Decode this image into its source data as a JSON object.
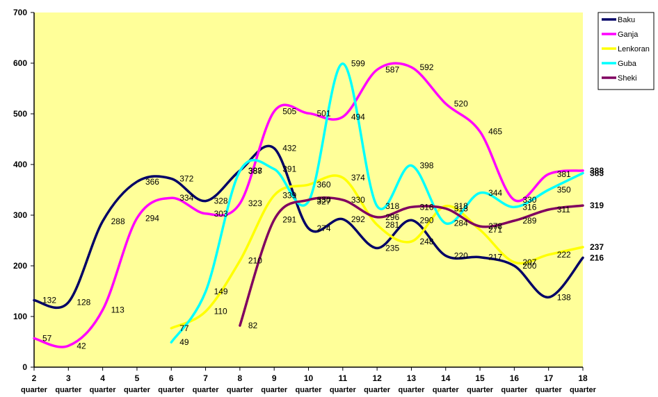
{
  "chart_data": {
    "type": "line",
    "x": [
      2,
      3,
      4,
      5,
      6,
      7,
      8,
      9,
      10,
      11,
      12,
      13,
      14,
      15,
      16,
      17,
      18
    ],
    "x_sublabel": "quarter",
    "ylim": [
      0,
      700
    ],
    "yticks": [
      0,
      100,
      200,
      300,
      400,
      500,
      600,
      700
    ],
    "grid": false,
    "legend_position": "top-right",
    "plot_background": "#ffff99",
    "series": [
      {
        "name": "Baku",
        "color": "#000066",
        "values": [
          132,
          128,
          288,
          366,
          372,
          328,
          388,
          432,
          274,
          292,
          235,
          290,
          220,
          217,
          200,
          138,
          216
        ]
      },
      {
        "name": "Ganja",
        "color": "#ff00ff",
        "values": [
          57,
          42,
          113,
          294,
          334,
          303,
          323,
          505,
          501,
          494,
          587,
          592,
          520,
          465,
          330,
          381,
          388
        ]
      },
      {
        "name": "Lenkoran",
        "color": "#ffff00",
        "values": [
          null,
          null,
          null,
          null,
          77,
          110,
          210,
          339,
          360,
          374,
          281,
          248,
          318,
          271,
          207,
          222,
          237
        ]
      },
      {
        "name": "Guba",
        "color": "#00ffff",
        "values": [
          null,
          null,
          null,
          null,
          49,
          149,
          387,
          391,
          327,
          599,
          318,
          398,
          284,
          344,
          316,
          350,
          383
        ]
      },
      {
        "name": "Sheki",
        "color": "#800060",
        "values": [
          null,
          null,
          null,
          null,
          null,
          null,
          82,
          291,
          330,
          330,
          296,
          316,
          313,
          278,
          289,
          311,
          319
        ]
      }
    ]
  }
}
